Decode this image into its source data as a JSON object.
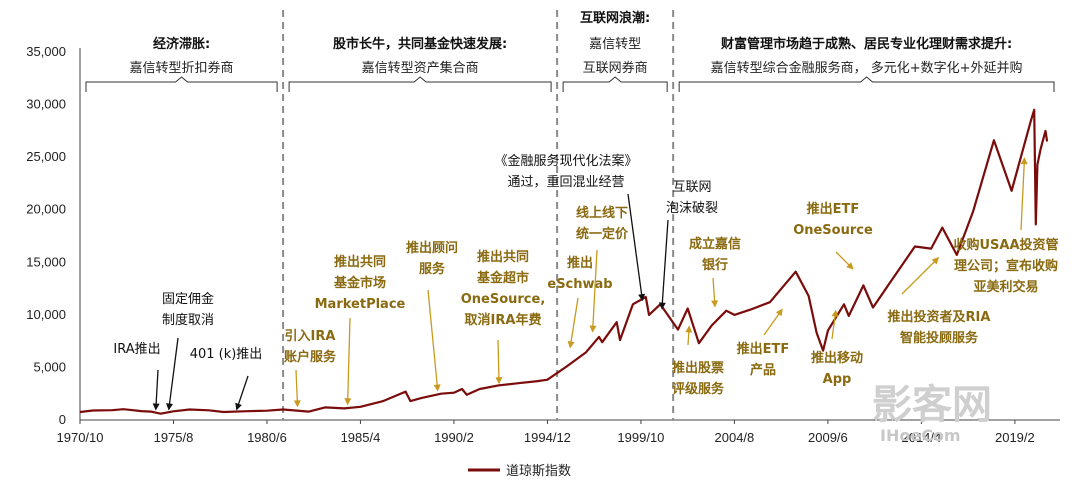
{
  "chart_data": {
    "type": "line",
    "series": [
      {
        "name": "道琼斯指数",
        "color": "#7a0c0c",
        "points": [
          [
            "1970/10",
            760
          ],
          [
            "1971/6",
            900
          ],
          [
            "1972/6",
            930
          ],
          [
            "1973/1",
            1030
          ],
          [
            "1973/12",
            850
          ],
          [
            "1974/6",
            800
          ],
          [
            "1974/12",
            600
          ],
          [
            "1975/8",
            830
          ],
          [
            "1976/6",
            1000
          ],
          [
            "1977/6",
            920
          ],
          [
            "1978/3",
            760
          ],
          [
            "1979/6",
            840
          ],
          [
            "1980/6",
            880
          ],
          [
            "1981/4",
            1000
          ],
          [
            "1982/8",
            800
          ],
          [
            "1983/6",
            1200
          ],
          [
            "1984/6",
            1100
          ],
          [
            "1985/4",
            1260
          ],
          [
            "1986/6",
            1800
          ],
          [
            "1987/8",
            2700
          ],
          [
            "1987/11",
            1800
          ],
          [
            "1988/6",
            2100
          ],
          [
            "1989/6",
            2500
          ],
          [
            "1990/2",
            2600
          ],
          [
            "1990/7",
            2950
          ],
          [
            "1990/10",
            2400
          ],
          [
            "1991/6",
            2950
          ],
          [
            "1992/6",
            3300
          ],
          [
            "1993/6",
            3500
          ],
          [
            "1994/6",
            3700
          ],
          [
            "1994/12",
            3830
          ],
          [
            "1995/12",
            5100
          ],
          [
            "1996/12",
            6450
          ],
          [
            "1997/8",
            7900
          ],
          [
            "1997/10",
            7400
          ],
          [
            "1998/7",
            9300
          ],
          [
            "1998/9",
            7600
          ],
          [
            "1999/5",
            11000
          ],
          [
            "2000/1",
            11700
          ],
          [
            "2000/3",
            10000
          ],
          [
            "2000/10",
            11000
          ],
          [
            "2001/9",
            8600
          ],
          [
            "2002/3",
            10600
          ],
          [
            "2002/10",
            7300
          ],
          [
            "2003/6",
            9000
          ],
          [
            "2004/3",
            10400
          ],
          [
            "2004/8",
            10000
          ],
          [
            "2005/6",
            10500
          ],
          [
            "2006/6",
            11200
          ],
          [
            "2007/10",
            14100
          ],
          [
            "2008/6",
            11800
          ],
          [
            "2008/11",
            8300
          ],
          [
            "2009/3",
            6600
          ],
          [
            "2009/6",
            8500
          ],
          [
            "2010/4",
            11000
          ],
          [
            "2010/7",
            9900
          ],
          [
            "2011/4",
            12800
          ],
          [
            "2011/10",
            10700
          ],
          [
            "2012/10",
            13400
          ],
          [
            "2013/12",
            16500
          ],
          [
            "2014/10",
            16300
          ],
          [
            "2015/5",
            18300
          ],
          [
            "2016/2",
            15700
          ],
          [
            "2016/12",
            19800
          ],
          [
            "2018/1",
            26600
          ],
          [
            "2018/12",
            21800
          ],
          [
            "2019/12",
            28500
          ],
          [
            "2020/2",
            29500
          ],
          [
            "2020/3",
            18600
          ],
          [
            "2020/4",
            24300
          ],
          [
            "2020/6",
            25800
          ],
          [
            "2020/9",
            27500
          ],
          [
            "2020/10",
            26500
          ]
        ]
      }
    ],
    "x_axis": {
      "min": "1970/10",
      "max": "2021/6",
      "tick_labels": [
        "1970/10",
        "1975/8",
        "1980/6",
        "1985/4",
        "1990/2",
        "1994/12",
        "1999/10",
        "2004/8",
        "2009/6",
        "2014/4",
        "2019/2"
      ]
    },
    "y_axis": {
      "min": 0,
      "max": 35000,
      "tick_labels": [
        "0",
        "5,000",
        "10,000",
        "15,000",
        "20,000",
        "25,000",
        "30,000",
        "35,000"
      ]
    },
    "eras": [
      {
        "title": "经济滞胀:",
        "subtitle": "嘉信转型折扣券商",
        "start": "1970/10",
        "end": "1981/4"
      },
      {
        "title": "股市长牛，共同基金快速发展:",
        "subtitle": "嘉信转型资产集合商",
        "start": "1981/4",
        "end": "1995/6"
      },
      {
        "title": "互联网浪潮:",
        "subtitle": "嘉信转型",
        "subtitle2": "互联网券商",
        "start": "1995/6",
        "end": "2001/6"
      },
      {
        "title": "财富管理市场趋于成熟、居民专业化理财需求提升:",
        "subtitle": "嘉信转型综合金融服务商， 多元化+数字化+外延并购",
        "start": "2001/6",
        "end": "2021/6"
      }
    ],
    "annotations": [
      {
        "lines": [
          "IRA推出"
        ],
        "style": "black",
        "target": [
          "1974/9",
          900
        ]
      },
      {
        "lines": [
          "固定佣金",
          "制度取消"
        ],
        "style": "black",
        "target": [
          "1975/5",
          900
        ]
      },
      {
        "lines": [
          "401 (k)推出"
        ],
        "style": "black",
        "target": [
          "1978/11",
          900
        ]
      },
      {
        "lines": [
          "引入IRA",
          "账户服务"
        ],
        "style": "gold",
        "target": [
          "1982/1",
          1200
        ]
      },
      {
        "lines": [
          "推出共同",
          "基金市场",
          "MarketPlace"
        ],
        "style": "gold",
        "target": [
          "1984/8",
          1400
        ]
      },
      {
        "lines": [
          "推出顾问",
          "服务"
        ],
        "style": "gold",
        "target": [
          "1989/4",
          2700
        ]
      },
      {
        "lines": [
          "推出共同",
          "基金超市",
          "OneSource,",
          "取消IRA年费"
        ],
        "style": "gold",
        "target": [
          "1992/6",
          3400
        ]
      },
      {
        "lines": [
          "推出",
          "eSchwab"
        ],
        "style": "gold",
        "target": [
          "1996/2",
          6800
        ]
      },
      {
        "lines": [
          "线上线下",
          "统一定价"
        ],
        "style": "gold",
        "target": [
          "1997/4",
          8300
        ]
      },
      {
        "lines": [
          "《金融服务现代化法案》",
          "通过，重回混业经营"
        ],
        "style": "black",
        "target": [
          "1999/11",
          11300
        ]
      },
      {
        "lines": [
          "互联网",
          "泡沫破裂"
        ],
        "style": "black",
        "target": [
          "2000/11",
          10500
        ]
      },
      {
        "lines": [
          "成立嘉信",
          "银行"
        ],
        "style": "gold",
        "target": [
          "2003/8",
          10700
        ]
      },
      {
        "lines": [
          "推出股票",
          "评级服务"
        ],
        "style": "gold",
        "target": [
          "2002/4",
          9000
        ]
      },
      {
        "lines": [
          "推出ETF",
          "产品"
        ],
        "style": "gold",
        "target": [
          "2007/2",
          10600
        ]
      },
      {
        "lines": [
          "推出ETF",
          "OneSource"
        ],
        "style": "gold",
        "target": [
          "2010/10",
          14300
        ]
      },
      {
        "lines": [
          "推出移动",
          "App"
        ],
        "style": "gold",
        "target": [
          "2009/11",
          10500
        ]
      },
      {
        "lines": [
          "推出投资者及RIA",
          "智能投顾服务"
        ],
        "style": "gold",
        "target": [
          "2015/3",
          15500
        ]
      },
      {
        "lines": [
          "收购USAA投资管",
          "理公司；宣布收购",
          "亚美利交易"
        ],
        "style": "gold",
        "target": [
          "2019/8",
          25000
        ]
      }
    ]
  },
  "watermark": {
    "text": "影客网",
    "subtext": "IHoeCom"
  }
}
